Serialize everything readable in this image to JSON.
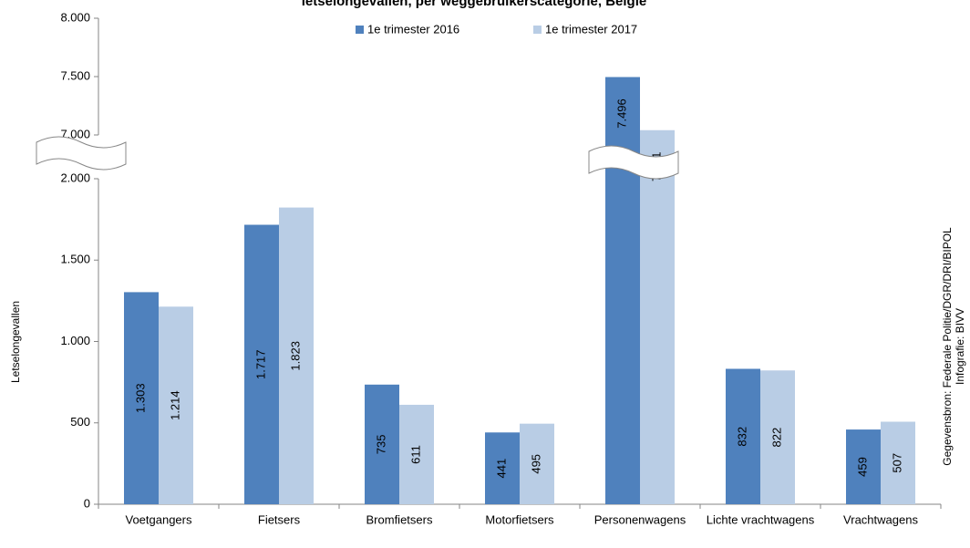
{
  "chart_data": {
    "type": "bar",
    "title": "letselongevallen, per weggebruikerscategorie, België",
    "y_label": "Letselongevallen",
    "source": "Gegevensbron: Federale Politie/DGR/DRI/BIPOL",
    "credit": "Infografie: BIVV",
    "categories": [
      "Voetgangers",
      "Fietsers",
      "Bromfietsers",
      "Motorfietsers",
      "Personenwagens",
      "Lichte vrachtwagens",
      "Vrachtwagens"
    ],
    "series": [
      {
        "name": "1e trimester 2016",
        "color": "#4f81bd",
        "values": [
          1303,
          1717,
          735,
          441,
          7496,
          832,
          459
        ],
        "value_labels": [
          "1.303",
          "1.717",
          "735",
          "441",
          "7.496",
          "832",
          "459"
        ]
      },
      {
        "name": "1e trimester 2017",
        "color": "#b9cde5",
        "values": [
          1214,
          1823,
          611,
          495,
          7041,
          822,
          507
        ],
        "value_labels": [
          "1.214",
          "1.823",
          "611",
          "495",
          "7.041",
          "822",
          "507"
        ]
      }
    ],
    "ylim": [
      0,
      8000
    ],
    "ybreak": [
      2000,
      7000
    ],
    "yticks": [
      0,
      500,
      {
        "value": 1000,
        "label": "1.000"
      },
      {
        "value": 1500,
        "label": "1.500"
      },
      {
        "value": 2000,
        "label": "2.000"
      },
      {
        "value": 7000,
        "label": "7.000"
      },
      {
        "value": 7500,
        "label": "7.500"
      },
      {
        "value": 8000,
        "label": "8.000"
      }
    ],
    "legend": "top"
  }
}
